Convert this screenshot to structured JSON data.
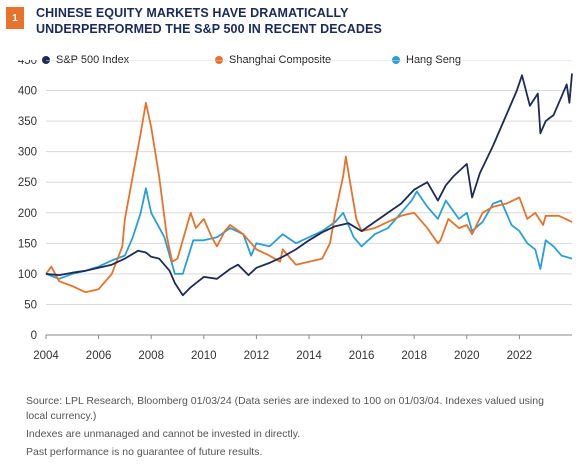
{
  "figure": {
    "number": "1",
    "title": "CHINESE EQUITY MARKETS HAVE DRAMATICALLY UNDERPERFORMED THE S&P 500 IN RECENT DECADES"
  },
  "footer": {
    "source": "Source: LPL Research, Bloomberg  01/03/24  (Data series are indexed to 100 on 01/03/04. Indexes valued using local currency.)",
    "note1": "Indexes are unmanaged and cannot be invested in directly.",
    "note2": "Past performance is no guarantee of future results."
  },
  "colors": {
    "badge": "#e8722b",
    "title": "#1a2a5a",
    "sp500": "#1d2b55",
    "shanghai": "#e8722b",
    "hangseng": "#2a9fd6",
    "grid": "#d9d9d9"
  },
  "chart_data": {
    "type": "line",
    "title": "",
    "xlabel": "",
    "ylabel": "",
    "xlim": [
      2004,
      2024
    ],
    "ylim": [
      0,
      450
    ],
    "xticks": [
      2004,
      2006,
      2008,
      2010,
      2012,
      2014,
      2016,
      2018,
      2020,
      2022
    ],
    "yticks": [
      0,
      50,
      100,
      150,
      200,
      250,
      300,
      350,
      400,
      450
    ],
    "grid": "horizontal",
    "legend": "top",
    "series": [
      {
        "name": "S&P 500 Index",
        "color": "#1d2b55",
        "points": [
          [
            2004,
            100
          ],
          [
            2004.5,
            98
          ],
          [
            2005,
            102
          ],
          [
            2005.5,
            105
          ],
          [
            2006,
            110
          ],
          [
            2006.5,
            115
          ],
          [
            2007,
            125
          ],
          [
            2007.5,
            138
          ],
          [
            2007.8,
            135
          ],
          [
            2008,
            128
          ],
          [
            2008.3,
            125
          ],
          [
            2008.7,
            105
          ],
          [
            2008.9,
            85
          ],
          [
            2009.2,
            65
          ],
          [
            2009.5,
            78
          ],
          [
            2010,
            95
          ],
          [
            2010.5,
            92
          ],
          [
            2011,
            108
          ],
          [
            2011.3,
            115
          ],
          [
            2011.7,
            98
          ],
          [
            2012,
            110
          ],
          [
            2012.5,
            118
          ],
          [
            2013,
            128
          ],
          [
            2013.5,
            140
          ],
          [
            2014,
            155
          ],
          [
            2014.5,
            168
          ],
          [
            2015,
            178
          ],
          [
            2015.5,
            183
          ],
          [
            2016,
            170
          ],
          [
            2016.5,
            185
          ],
          [
            2017,
            200
          ],
          [
            2017.5,
            215
          ],
          [
            2018,
            238
          ],
          [
            2018.5,
            250
          ],
          [
            2018.9,
            220
          ],
          [
            2019.2,
            245
          ],
          [
            2019.5,
            260
          ],
          [
            2020,
            280
          ],
          [
            2020.2,
            225
          ],
          [
            2020.5,
            265
          ],
          [
            2021,
            310
          ],
          [
            2021.5,
            360
          ],
          [
            2021.9,
            400
          ],
          [
            2022.1,
            425
          ],
          [
            2022.4,
            375
          ],
          [
            2022.7,
            395
          ],
          [
            2022.8,
            330
          ],
          [
            2023,
            350
          ],
          [
            2023.3,
            360
          ],
          [
            2023.6,
            390
          ],
          [
            2023.8,
            410
          ],
          [
            2023.9,
            380
          ],
          [
            2024,
            428
          ]
        ]
      },
      {
        "name": "Shanghai Composite",
        "color": "#e8722b",
        "points": [
          [
            2004,
            100
          ],
          [
            2004.2,
            112
          ],
          [
            2004.5,
            88
          ],
          [
            2005,
            80
          ],
          [
            2005.5,
            70
          ],
          [
            2006,
            75
          ],
          [
            2006.5,
            100
          ],
          [
            2006.9,
            145
          ],
          [
            2007,
            190
          ],
          [
            2007.3,
            260
          ],
          [
            2007.6,
            330
          ],
          [
            2007.8,
            380
          ],
          [
            2008,
            340
          ],
          [
            2008.3,
            260
          ],
          [
            2008.6,
            160
          ],
          [
            2008.8,
            120
          ],
          [
            2009,
            125
          ],
          [
            2009.5,
            200
          ],
          [
            2009.7,
            175
          ],
          [
            2010,
            190
          ],
          [
            2010.3,
            160
          ],
          [
            2010.5,
            145
          ],
          [
            2010.8,
            170
          ],
          [
            2011,
            180
          ],
          [
            2011.5,
            165
          ],
          [
            2012,
            140
          ],
          [
            2012.5,
            130
          ],
          [
            2012.9,
            120
          ],
          [
            2013,
            140
          ],
          [
            2013.5,
            115
          ],
          [
            2014,
            120
          ],
          [
            2014.5,
            125
          ],
          [
            2014.8,
            150
          ],
          [
            2015,
            200
          ],
          [
            2015.3,
            260
          ],
          [
            2015.4,
            292
          ],
          [
            2015.6,
            240
          ],
          [
            2015.8,
            190
          ],
          [
            2016,
            170
          ],
          [
            2016.5,
            175
          ],
          [
            2017,
            185
          ],
          [
            2017.5,
            195
          ],
          [
            2018,
            200
          ],
          [
            2018.5,
            175
          ],
          [
            2018.9,
            150
          ],
          [
            2019,
            155
          ],
          [
            2019.3,
            190
          ],
          [
            2019.7,
            175
          ],
          [
            2020,
            180
          ],
          [
            2020.2,
            165
          ],
          [
            2020.6,
            200
          ],
          [
            2021,
            210
          ],
          [
            2021.5,
            215
          ],
          [
            2022,
            225
          ],
          [
            2022.3,
            190
          ],
          [
            2022.6,
            200
          ],
          [
            2022.9,
            180
          ],
          [
            2023,
            195
          ],
          [
            2023.5,
            195
          ],
          [
            2024,
            185
          ]
        ]
      },
      {
        "name": "Hang Seng",
        "color": "#2a9fd6",
        "points": [
          [
            2004,
            100
          ],
          [
            2004.5,
            92
          ],
          [
            2005,
            100
          ],
          [
            2005.5,
            105
          ],
          [
            2006,
            112
          ],
          [
            2006.5,
            122
          ],
          [
            2007,
            130
          ],
          [
            2007.3,
            160
          ],
          [
            2007.6,
            200
          ],
          [
            2007.8,
            240
          ],
          [
            2008,
            200
          ],
          [
            2008.5,
            160
          ],
          [
            2008.9,
            100
          ],
          [
            2009.2,
            100
          ],
          [
            2009.6,
            155
          ],
          [
            2010,
            155
          ],
          [
            2010.5,
            160
          ],
          [
            2011,
            175
          ],
          [
            2011.5,
            165
          ],
          [
            2011.8,
            130
          ],
          [
            2012,
            150
          ],
          [
            2012.5,
            145
          ],
          [
            2013,
            165
          ],
          [
            2013.5,
            150
          ],
          [
            2014,
            160
          ],
          [
            2014.5,
            170
          ],
          [
            2015,
            185
          ],
          [
            2015.3,
            200
          ],
          [
            2015.7,
            160
          ],
          [
            2016,
            145
          ],
          [
            2016.5,
            165
          ],
          [
            2017,
            175
          ],
          [
            2017.5,
            200
          ],
          [
            2017.9,
            220
          ],
          [
            2018.1,
            235
          ],
          [
            2018.5,
            210
          ],
          [
            2018.9,
            190
          ],
          [
            2019.2,
            220
          ],
          [
            2019.7,
            190
          ],
          [
            2020,
            200
          ],
          [
            2020.2,
            170
          ],
          [
            2020.6,
            185
          ],
          [
            2021,
            215
          ],
          [
            2021.3,
            220
          ],
          [
            2021.7,
            180
          ],
          [
            2022,
            170
          ],
          [
            2022.3,
            150
          ],
          [
            2022.6,
            140
          ],
          [
            2022.8,
            108
          ],
          [
            2023,
            155
          ],
          [
            2023.3,
            145
          ],
          [
            2023.6,
            130
          ],
          [
            2024,
            125
          ]
        ]
      }
    ]
  }
}
